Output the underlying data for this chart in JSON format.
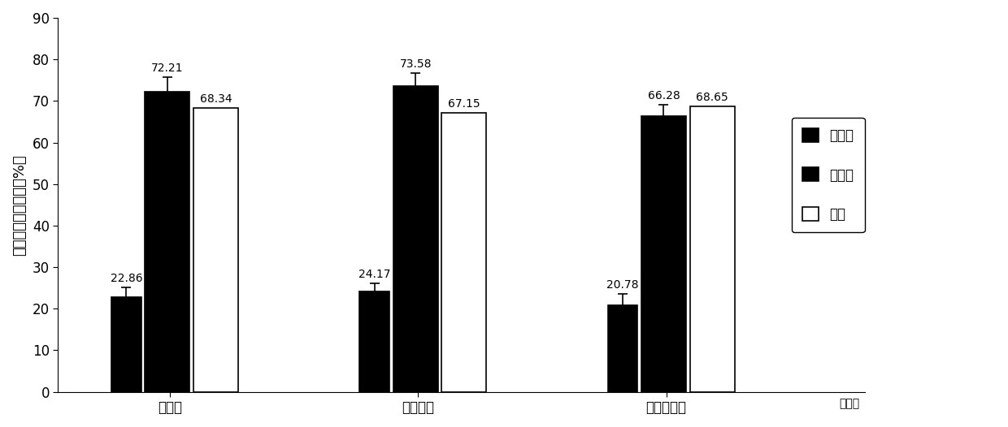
{
  "groups": [
    "堤口村",
    "津龙公司",
    "志清合作社"
  ],
  "series": [
    {
      "name": "放蜂区",
      "values": [
        22.86,
        24.17,
        20.78
      ],
      "errors": [
        2.2,
        2.0,
        2.8
      ],
      "color": "#000000",
      "edge_color": "#000000"
    },
    {
      "name": "对照区",
      "values": [
        72.21,
        73.58,
        66.28
      ],
      "errors": [
        3.5,
        3.2,
        2.8
      ],
      "color": "#000000",
      "edge_color": "#000000"
    },
    {
      "name": "防效",
      "values": [
        68.34,
        67.15,
        68.65
      ],
      "errors": [
        0,
        0,
        0
      ],
      "color": "#ffffff",
      "edge_color": "#000000"
    }
  ],
  "bar_labels": [
    [
      "22.86",
      "72.21",
      "68.34"
    ],
    [
      "24.17",
      "73.58",
      "67.15"
    ],
    [
      "20.78",
      "66.28",
      "68.65"
    ]
  ],
  "ylabel": "百株被害茎数（防效%）",
  "ylim": [
    0,
    90
  ],
  "yticks": [
    0,
    10,
    20,
    30,
    40,
    50,
    60,
    70,
    80,
    90
  ],
  "xlabel_extra": "试验区",
  "background_color": "#ffffff",
  "legend_labels": [
    "放蜂区",
    "对照区",
    "防效"
  ],
  "legend_colors": [
    "#000000",
    "#000000",
    "#ffffff"
  ],
  "font_size_label": 13,
  "font_size_tick": 12,
  "font_size_annot": 10
}
